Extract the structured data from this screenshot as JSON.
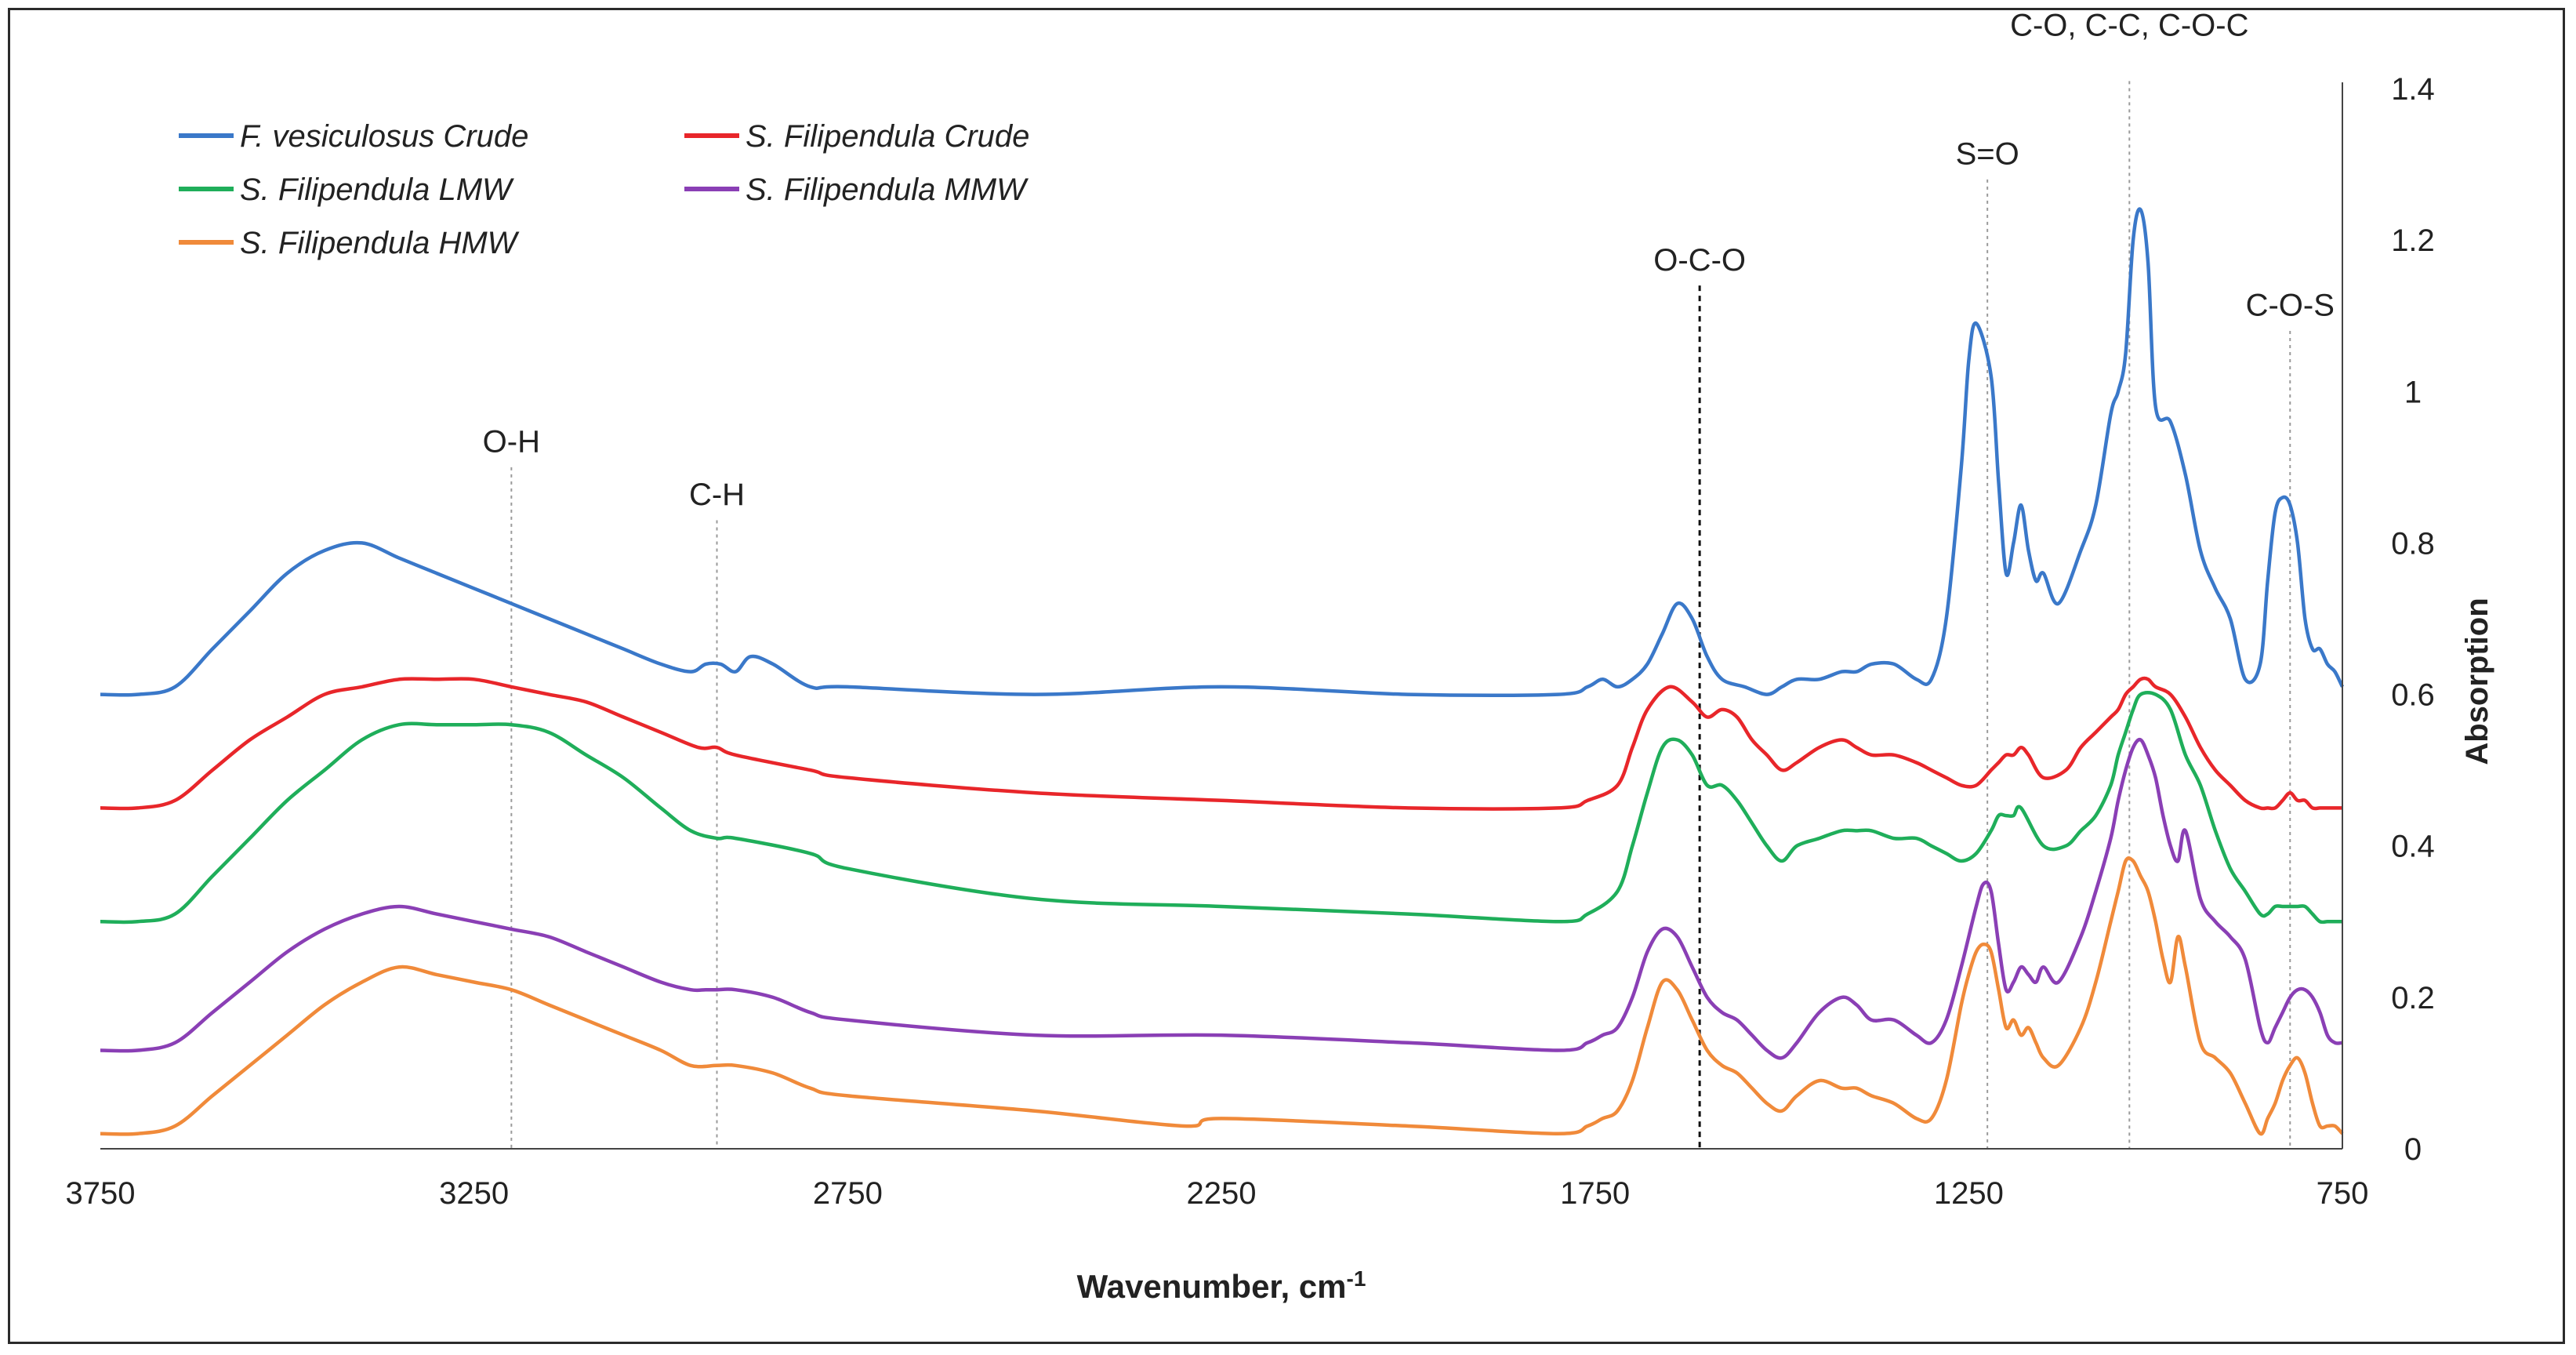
{
  "chart_data": {
    "type": "line",
    "title": "",
    "xlabel": "Wavenumber, cm",
    "xlabel_sup": "-1",
    "ylabel": "Absorption",
    "xlim": [
      3750,
      750
    ],
    "ylim": [
      0,
      1.4
    ],
    "x_ticks": [
      "3750",
      "3250",
      "2750",
      "2250",
      "1750",
      "1250",
      "750"
    ],
    "y_ticks": [
      "0",
      "0.2",
      "0.4",
      "0.6",
      "0.8",
      "1",
      "1.2",
      "1.4"
    ],
    "grid": false,
    "legend_position": "top-left",
    "annotations": [
      {
        "label": "O-H",
        "x": 3200,
        "label_y": 0.92,
        "line_top": 0.9,
        "style": "light"
      },
      {
        "label": "C-H",
        "x": 2925,
        "label_y": 0.85,
        "line_top": 0.83,
        "style": "light"
      },
      {
        "label": "O-C-O",
        "x": 1610,
        "label_y": 1.16,
        "line_top": 1.14,
        "style": "dark"
      },
      {
        "label": "S=O",
        "x": 1225,
        "label_y": 1.3,
        "line_top": 1.28,
        "style": "light"
      },
      {
        "label": "C-O, C-C, C-O-C",
        "x": 1035,
        "label_y": 1.47,
        "line_top": 1.41,
        "style": "light"
      },
      {
        "label": "C-O-S",
        "x": 820,
        "label_y": 1.1,
        "line_top": 1.08,
        "style": "light"
      }
    ],
    "series": [
      {
        "name": "F. vesiculosus Crude",
        "color": "#3a78c9",
        "x": [
          3750,
          3700,
          3650,
          3600,
          3550,
          3500,
          3450,
          3400,
          3350,
          3300,
          3250,
          3200,
          3150,
          3100,
          3050,
          3000,
          2960,
          2940,
          2920,
          2900,
          2880,
          2850,
          2800,
          2750,
          2500,
          2250,
          2000,
          1800,
          1760,
          1740,
          1720,
          1700,
          1680,
          1660,
          1640,
          1620,
          1600,
          1580,
          1550,
          1520,
          1500,
          1480,
          1450,
          1420,
          1400,
          1380,
          1350,
          1320,
          1300,
          1280,
          1260,
          1250,
          1240,
          1220,
          1210,
          1200,
          1190,
          1180,
          1170,
          1160,
          1150,
          1130,
          1100,
          1080,
          1060,
          1050,
          1040,
          1030,
          1020,
          1010,
          1000,
          980,
          960,
          940,
          920,
          900,
          880,
          860,
          850,
          840,
          830,
          820,
          810,
          800,
          790,
          780,
          770,
          760,
          750
        ],
        "y": [
          0.6,
          0.6,
          0.61,
          0.66,
          0.71,
          0.76,
          0.79,
          0.8,
          0.78,
          0.76,
          0.74,
          0.72,
          0.7,
          0.68,
          0.66,
          0.64,
          0.63,
          0.64,
          0.64,
          0.63,
          0.65,
          0.64,
          0.61,
          0.61,
          0.6,
          0.61,
          0.6,
          0.6,
          0.61,
          0.62,
          0.61,
          0.62,
          0.64,
          0.68,
          0.72,
          0.7,
          0.65,
          0.62,
          0.61,
          0.6,
          0.61,
          0.62,
          0.62,
          0.63,
          0.63,
          0.64,
          0.64,
          0.62,
          0.62,
          0.7,
          0.9,
          1.04,
          1.09,
          1.02,
          0.88,
          0.76,
          0.8,
          0.85,
          0.79,
          0.75,
          0.76,
          0.72,
          0.79,
          0.85,
          0.97,
          1.0,
          1.05,
          1.2,
          1.24,
          1.17,
          0.98,
          0.96,
          0.89,
          0.79,
          0.74,
          0.7,
          0.62,
          0.64,
          0.75,
          0.84,
          0.86,
          0.85,
          0.8,
          0.7,
          0.66,
          0.66,
          0.64,
          0.63,
          0.61
        ]
      },
      {
        "name": "S. Filipendula Crude",
        "color": "#e8262a",
        "x": [
          3750,
          3700,
          3650,
          3600,
          3550,
          3500,
          3450,
          3400,
          3350,
          3300,
          3250,
          3200,
          3150,
          3100,
          3050,
          3000,
          2950,
          2925,
          2900,
          2800,
          2750,
          2500,
          2250,
          2000,
          1800,
          1760,
          1720,
          1700,
          1680,
          1650,
          1620,
          1600,
          1580,
          1560,
          1540,
          1520,
          1500,
          1480,
          1450,
          1420,
          1400,
          1380,
          1350,
          1320,
          1300,
          1280,
          1260,
          1240,
          1220,
          1210,
          1200,
          1190,
          1180,
          1170,
          1150,
          1120,
          1100,
          1080,
          1060,
          1050,
          1040,
          1030,
          1020,
          1010,
          1000,
          980,
          960,
          940,
          920,
          900,
          880,
          860,
          850,
          840,
          830,
          820,
          810,
          800,
          790,
          780,
          770,
          760,
          750
        ],
        "y": [
          0.45,
          0.45,
          0.46,
          0.5,
          0.54,
          0.57,
          0.6,
          0.61,
          0.62,
          0.62,
          0.62,
          0.61,
          0.6,
          0.59,
          0.57,
          0.55,
          0.53,
          0.53,
          0.52,
          0.5,
          0.49,
          0.47,
          0.46,
          0.45,
          0.45,
          0.46,
          0.48,
          0.53,
          0.58,
          0.61,
          0.59,
          0.57,
          0.58,
          0.57,
          0.54,
          0.52,
          0.5,
          0.51,
          0.53,
          0.54,
          0.53,
          0.52,
          0.52,
          0.51,
          0.5,
          0.49,
          0.48,
          0.48,
          0.5,
          0.51,
          0.52,
          0.52,
          0.53,
          0.52,
          0.49,
          0.5,
          0.53,
          0.55,
          0.57,
          0.58,
          0.6,
          0.61,
          0.62,
          0.62,
          0.61,
          0.6,
          0.57,
          0.53,
          0.5,
          0.48,
          0.46,
          0.45,
          0.45,
          0.45,
          0.46,
          0.47,
          0.46,
          0.46,
          0.45,
          0.45,
          0.45,
          0.45,
          0.45
        ]
      },
      {
        "name": "S. Filipendula LMW",
        "color": "#1fae5a",
        "x": [
          3750,
          3700,
          3650,
          3600,
          3550,
          3500,
          3450,
          3400,
          3350,
          3300,
          3250,
          3200,
          3150,
          3100,
          3050,
          3000,
          2960,
          2925,
          2900,
          2800,
          2750,
          2500,
          2250,
          2000,
          1800,
          1760,
          1720,
          1700,
          1680,
          1660,
          1640,
          1620,
          1600,
          1580,
          1560,
          1540,
          1520,
          1500,
          1480,
          1450,
          1420,
          1400,
          1380,
          1350,
          1320,
          1300,
          1280,
          1260,
          1240,
          1220,
          1210,
          1200,
          1190,
          1180,
          1150,
          1120,
          1100,
          1080,
          1060,
          1050,
          1040,
          1030,
          1020,
          1000,
          980,
          960,
          940,
          920,
          900,
          880,
          860,
          850,
          840,
          830,
          820,
          810,
          800,
          790,
          780,
          770,
          760,
          750
        ],
        "y": [
          0.3,
          0.3,
          0.31,
          0.36,
          0.41,
          0.46,
          0.5,
          0.54,
          0.56,
          0.56,
          0.56,
          0.56,
          0.55,
          0.52,
          0.49,
          0.45,
          0.42,
          0.41,
          0.41,
          0.39,
          0.37,
          0.33,
          0.32,
          0.31,
          0.3,
          0.31,
          0.34,
          0.4,
          0.47,
          0.53,
          0.54,
          0.52,
          0.48,
          0.48,
          0.46,
          0.43,
          0.4,
          0.38,
          0.4,
          0.41,
          0.42,
          0.42,
          0.42,
          0.41,
          0.41,
          0.4,
          0.39,
          0.38,
          0.39,
          0.42,
          0.44,
          0.44,
          0.44,
          0.45,
          0.4,
          0.4,
          0.42,
          0.44,
          0.48,
          0.52,
          0.55,
          0.58,
          0.6,
          0.6,
          0.58,
          0.52,
          0.48,
          0.42,
          0.37,
          0.34,
          0.31,
          0.31,
          0.32,
          0.32,
          0.32,
          0.32,
          0.32,
          0.31,
          0.3,
          0.3,
          0.3,
          0.3
        ]
      },
      {
        "name": "S. Filipendula MMW",
        "color": "#8a3fb5",
        "x": [
          3750,
          3700,
          3650,
          3600,
          3550,
          3500,
          3450,
          3400,
          3350,
          3300,
          3250,
          3200,
          3150,
          3100,
          3050,
          3000,
          2960,
          2940,
          2925,
          2900,
          2850,
          2800,
          2750,
          2500,
          2250,
          2000,
          1800,
          1760,
          1740,
          1720,
          1700,
          1680,
          1660,
          1640,
          1620,
          1600,
          1580,
          1560,
          1540,
          1520,
          1500,
          1480,
          1450,
          1420,
          1400,
          1380,
          1350,
          1320,
          1300,
          1280,
          1260,
          1240,
          1230,
          1220,
          1210,
          1200,
          1190,
          1180,
          1170,
          1160,
          1150,
          1130,
          1100,
          1080,
          1060,
          1050,
          1040,
          1030,
          1020,
          1010,
          1000,
          990,
          980,
          970,
          960,
          940,
          920,
          900,
          880,
          860,
          850,
          840,
          830,
          820,
          810,
          800,
          790,
          780,
          770,
          760,
          750
        ],
        "y": [
          0.13,
          0.13,
          0.14,
          0.18,
          0.22,
          0.26,
          0.29,
          0.31,
          0.32,
          0.31,
          0.3,
          0.29,
          0.28,
          0.26,
          0.24,
          0.22,
          0.21,
          0.21,
          0.21,
          0.21,
          0.2,
          0.18,
          0.17,
          0.15,
          0.15,
          0.14,
          0.13,
          0.14,
          0.15,
          0.16,
          0.2,
          0.26,
          0.29,
          0.28,
          0.24,
          0.2,
          0.18,
          0.17,
          0.15,
          0.13,
          0.12,
          0.14,
          0.18,
          0.2,
          0.19,
          0.17,
          0.17,
          0.15,
          0.14,
          0.17,
          0.24,
          0.32,
          0.35,
          0.34,
          0.27,
          0.21,
          0.22,
          0.24,
          0.23,
          0.22,
          0.24,
          0.22,
          0.28,
          0.34,
          0.41,
          0.46,
          0.5,
          0.53,
          0.54,
          0.52,
          0.49,
          0.44,
          0.4,
          0.38,
          0.42,
          0.33,
          0.3,
          0.28,
          0.25,
          0.16,
          0.14,
          0.16,
          0.18,
          0.2,
          0.21,
          0.21,
          0.2,
          0.18,
          0.15,
          0.14,
          0.14
        ]
      },
      {
        "name": "S. Filipendula HMW",
        "color": "#f08a3a",
        "x": [
          3750,
          3700,
          3650,
          3600,
          3550,
          3500,
          3450,
          3400,
          3350,
          3300,
          3250,
          3200,
          3150,
          3100,
          3050,
          3000,
          2960,
          2925,
          2900,
          2850,
          2800,
          2750,
          2500,
          2300,
          2250,
          2000,
          1800,
          1760,
          1740,
          1720,
          1700,
          1680,
          1660,
          1640,
          1620,
          1600,
          1580,
          1560,
          1540,
          1520,
          1500,
          1480,
          1450,
          1420,
          1400,
          1380,
          1350,
          1320,
          1300,
          1280,
          1260,
          1250,
          1240,
          1230,
          1220,
          1210,
          1200,
          1190,
          1180,
          1170,
          1160,
          1150,
          1130,
          1100,
          1080,
          1060,
          1050,
          1040,
          1030,
          1020,
          1010,
          1000,
          990,
          980,
          970,
          960,
          940,
          920,
          900,
          880,
          860,
          850,
          840,
          830,
          820,
          810,
          800,
          790,
          780,
          770,
          760,
          750
        ],
        "y": [
          0.02,
          0.02,
          0.03,
          0.07,
          0.11,
          0.15,
          0.19,
          0.22,
          0.24,
          0.23,
          0.22,
          0.21,
          0.19,
          0.17,
          0.15,
          0.13,
          0.11,
          0.11,
          0.11,
          0.1,
          0.08,
          0.07,
          0.05,
          0.03,
          0.04,
          0.03,
          0.02,
          0.03,
          0.04,
          0.05,
          0.09,
          0.16,
          0.22,
          0.21,
          0.17,
          0.13,
          0.11,
          0.1,
          0.08,
          0.06,
          0.05,
          0.07,
          0.09,
          0.08,
          0.08,
          0.07,
          0.06,
          0.04,
          0.04,
          0.09,
          0.19,
          0.23,
          0.26,
          0.27,
          0.26,
          0.21,
          0.16,
          0.17,
          0.15,
          0.16,
          0.14,
          0.12,
          0.11,
          0.16,
          0.22,
          0.3,
          0.34,
          0.38,
          0.38,
          0.36,
          0.34,
          0.3,
          0.25,
          0.22,
          0.28,
          0.24,
          0.14,
          0.12,
          0.1,
          0.06,
          0.02,
          0.04,
          0.06,
          0.09,
          0.11,
          0.12,
          0.1,
          0.06,
          0.03,
          0.03,
          0.03,
          0.02
        ]
      }
    ]
  }
}
